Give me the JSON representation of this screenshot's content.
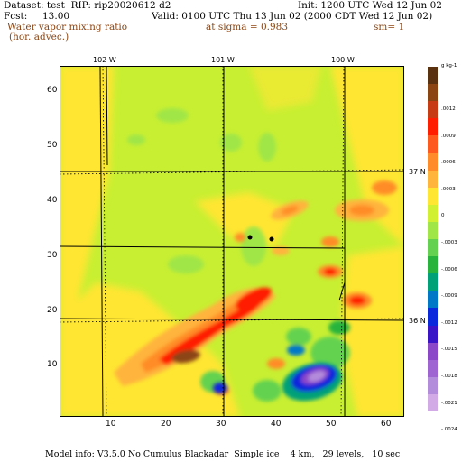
{
  "header": {
    "line1_left": "Dataset: test  RIP: rip20020612 d2",
    "line1_right": "Init: 1200 UTC Wed 12 Jun 02",
    "line2_left": "Fcst:     13.00",
    "line2_right": "Valid: 0100 UTC Thu 13 Jun 02 (2000 CDT Wed 12 Jun 02)",
    "field_name": "Water vapor mixing ratio",
    "field_subtitle": "(hor. advec.)",
    "level": "at sigma = 0.983",
    "smoothing": "sm= 1"
  },
  "map": {
    "lon_labels": [
      "102 W",
      "101 W",
      "100 W"
    ],
    "lat_labels": [
      "37 N",
      "36 N"
    ],
    "x_ticks": [
      "10",
      "20",
      "30",
      "40",
      "50",
      "60"
    ],
    "y_ticks": [
      "10",
      "20",
      "30",
      "40",
      "50",
      "60"
    ],
    "x_range": [
      1,
      64
    ],
    "y_range": [
      1,
      64
    ]
  },
  "colorbar": {
    "unit_label": "g kg-1",
    "tick_labels": [
      ".0012",
      ".0009",
      ".0006",
      ".0003",
      "0",
      "-.0003",
      "-.0006",
      "-.0009",
      "-.0012",
      "-.0015",
      "-.0018",
      "-.0021",
      "-.0024"
    ],
    "colors": [
      "#5a3210",
      "#8b4513",
      "#c83c14",
      "#ff1e00",
      "#ff5a1e",
      "#ff8c28",
      "#ffb43c",
      "#ffe632",
      "#d2f032",
      "#a0e646",
      "#64d250",
      "#28b43c",
      "#00a078",
      "#0078c8",
      "#0a28dc",
      "#3c14c8",
      "#8c46c8",
      "#a064d2",
      "#b48cdc",
      "#d2aae6"
    ]
  },
  "footer": {
    "model_info": "Model info: V3.5.0 No Cumulus Blackadar  Simple ice    4 km,   29 levels,   10 sec"
  }
}
